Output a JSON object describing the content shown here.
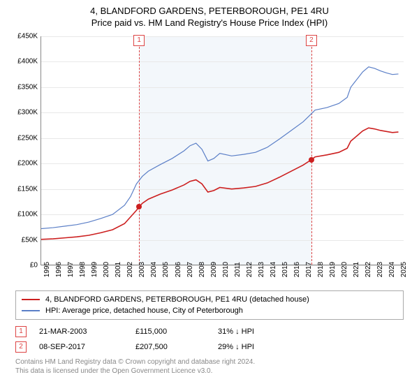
{
  "title_line1": "4, BLANDFORD GARDENS, PETERBOROUGH, PE1 4RU",
  "title_line2": "Price paid vs. HM Land Registry's House Price Index (HPI)",
  "chart": {
    "type": "line",
    "x_axis": {
      "min": 1995,
      "max": 2025.5,
      "ticks": [
        1995,
        1996,
        1997,
        1998,
        1999,
        2000,
        2001,
        2002,
        2003,
        2004,
        2005,
        2006,
        2007,
        2008,
        2009,
        2010,
        2011,
        2012,
        2013,
        2014,
        2015,
        2016,
        2017,
        2018,
        2019,
        2020,
        2021,
        2022,
        2023,
        2024,
        2025
      ]
    },
    "y_axis": {
      "min": 0,
      "max": 450000,
      "tick_step": 50000,
      "prefix": "£",
      "suffix": "K",
      "divisor": 1000
    },
    "grid_color": "#e8e8e8",
    "axis_color": "#888888",
    "background_color": "#ffffff",
    "shaded_region": {
      "x_start": 2003.22,
      "x_end": 2017.69,
      "color": "#f3f7fb"
    },
    "series": [
      {
        "name": "hpi",
        "color": "#5b7fc7",
        "line_width": 1.2,
        "points": [
          [
            1995,
            72000
          ],
          [
            1996,
            74000
          ],
          [
            1997,
            77000
          ],
          [
            1998,
            80000
          ],
          [
            1999,
            85000
          ],
          [
            2000,
            92000
          ],
          [
            2001,
            100000
          ],
          [
            2002,
            118000
          ],
          [
            2002.5,
            135000
          ],
          [
            2003,
            160000
          ],
          [
            2003.5,
            175000
          ],
          [
            2004,
            185000
          ],
          [
            2005,
            198000
          ],
          [
            2006,
            210000
          ],
          [
            2007,
            225000
          ],
          [
            2007.5,
            235000
          ],
          [
            2008,
            240000
          ],
          [
            2008.5,
            228000
          ],
          [
            2009,
            205000
          ],
          [
            2009.5,
            210000
          ],
          [
            2010,
            220000
          ],
          [
            2011,
            215000
          ],
          [
            2012,
            218000
          ],
          [
            2013,
            222000
          ],
          [
            2014,
            232000
          ],
          [
            2015,
            248000
          ],
          [
            2016,
            265000
          ],
          [
            2017,
            282000
          ],
          [
            2017.7,
            298000
          ],
          [
            2018,
            305000
          ],
          [
            2019,
            310000
          ],
          [
            2020,
            318000
          ],
          [
            2020.7,
            330000
          ],
          [
            2021,
            350000
          ],
          [
            2021.5,
            365000
          ],
          [
            2022,
            380000
          ],
          [
            2022.5,
            390000
          ],
          [
            2023,
            387000
          ],
          [
            2023.5,
            382000
          ],
          [
            2024,
            378000
          ],
          [
            2024.5,
            375000
          ],
          [
            2025,
            376000
          ]
        ]
      },
      {
        "name": "property",
        "color": "#cc1f1f",
        "line_width": 1.6,
        "points": [
          [
            1995,
            51000
          ],
          [
            1996,
            52000
          ],
          [
            1997,
            54000
          ],
          [
            1998,
            56000
          ],
          [
            1999,
            59000
          ],
          [
            2000,
            64000
          ],
          [
            2001,
            70000
          ],
          [
            2002,
            82000
          ],
          [
            2002.5,
            95000
          ],
          [
            2003,
            108000
          ],
          [
            2003.22,
            115000
          ],
          [
            2003.5,
            122000
          ],
          [
            2004,
            130000
          ],
          [
            2005,
            140000
          ],
          [
            2006,
            148000
          ],
          [
            2007,
            158000
          ],
          [
            2007.5,
            165000
          ],
          [
            2008,
            168000
          ],
          [
            2008.5,
            160000
          ],
          [
            2009,
            144000
          ],
          [
            2009.5,
            147000
          ],
          [
            2010,
            153000
          ],
          [
            2011,
            150000
          ],
          [
            2012,
            152000
          ],
          [
            2013,
            155000
          ],
          [
            2014,
            162000
          ],
          [
            2015,
            173000
          ],
          [
            2016,
            185000
          ],
          [
            2017,
            197000
          ],
          [
            2017.69,
            207500
          ],
          [
            2018,
            213000
          ],
          [
            2019,
            217000
          ],
          [
            2020,
            222000
          ],
          [
            2020.7,
            230000
          ],
          [
            2021,
            244000
          ],
          [
            2021.5,
            254000
          ],
          [
            2022,
            264000
          ],
          [
            2022.5,
            270000
          ],
          [
            2023,
            268000
          ],
          [
            2023.5,
            265000
          ],
          [
            2024,
            263000
          ],
          [
            2024.5,
            261000
          ],
          [
            2025,
            262000
          ]
        ]
      }
    ],
    "markers": [
      {
        "id": "1",
        "x": 2003.22,
        "y": 115000
      },
      {
        "id": "2",
        "x": 2017.69,
        "y": 207500
      }
    ]
  },
  "legend": {
    "items": [
      {
        "color": "#cc1f1f",
        "label": "4, BLANDFORD GARDENS, PETERBOROUGH, PE1 4RU (detached house)"
      },
      {
        "color": "#5b7fc7",
        "label": "HPI: Average price, detached house, City of Peterborough"
      }
    ]
  },
  "sales": [
    {
      "id": "1",
      "date": "21-MAR-2003",
      "price": "£115,000",
      "diff": "31% ↓ HPI"
    },
    {
      "id": "2",
      "date": "08-SEP-2017",
      "price": "£207,500",
      "diff": "29% ↓ HPI"
    }
  ],
  "footnote_line1": "Contains HM Land Registry data © Crown copyright and database right 2024.",
  "footnote_line2": "This data is licensed under the Open Government Licence v3.0."
}
